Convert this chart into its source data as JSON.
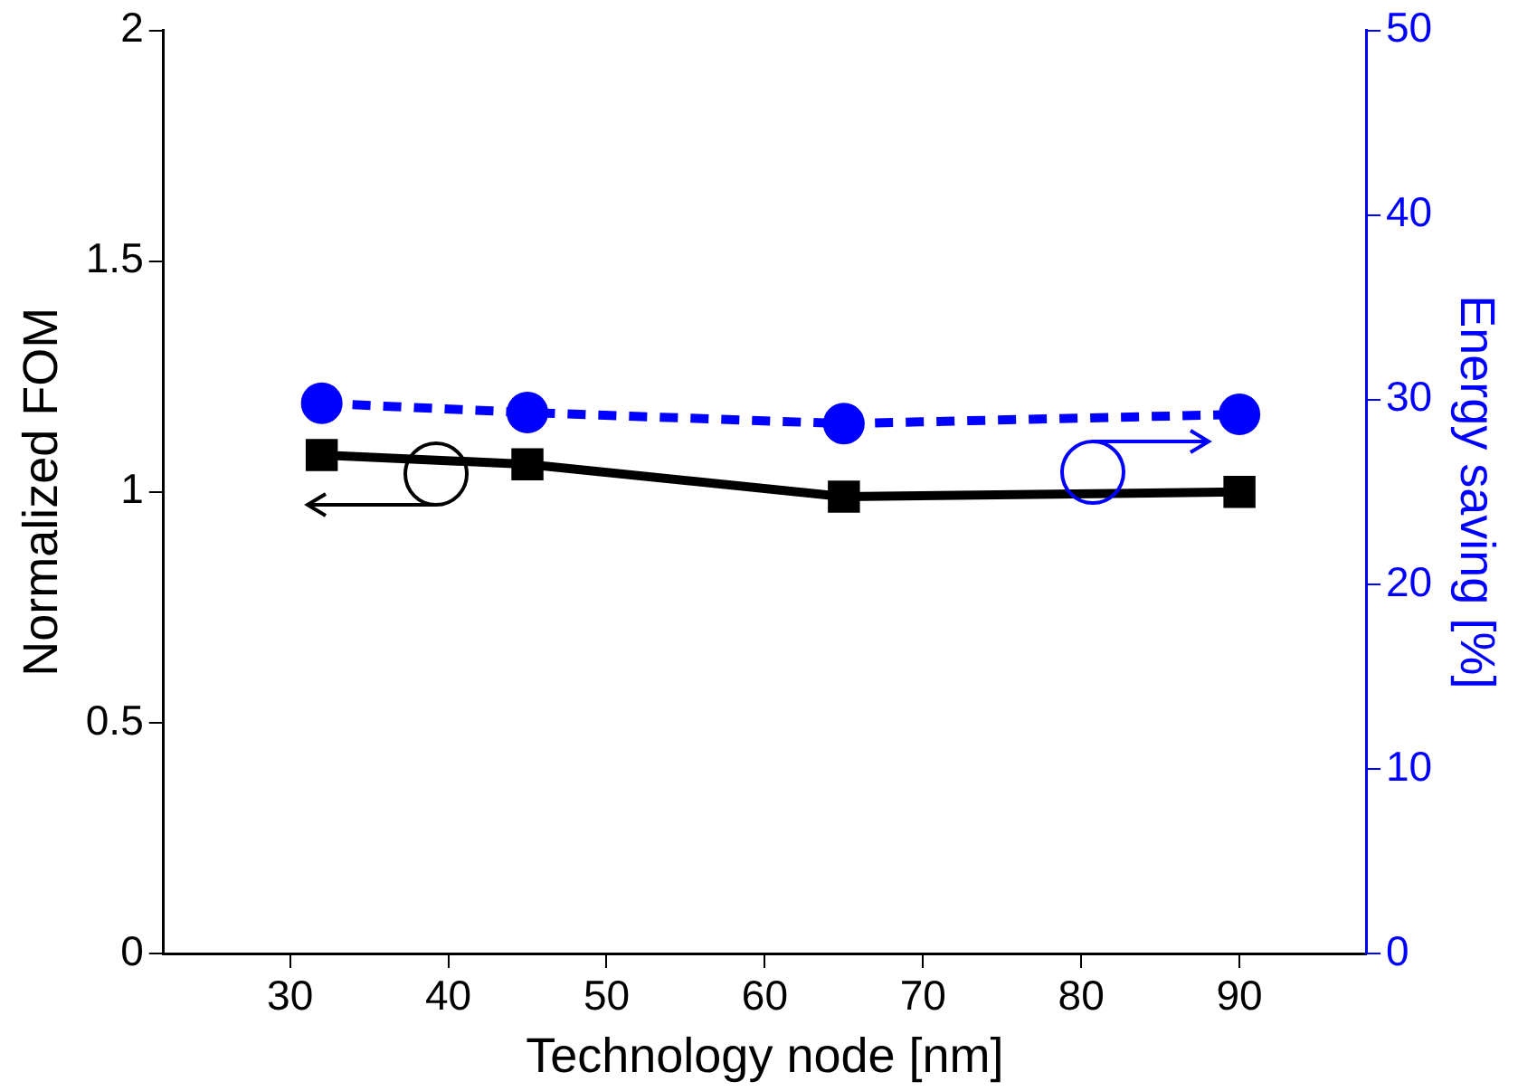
{
  "chart_data": {
    "type": "line",
    "xlabel": "Technology node [nm]",
    "ylabel": "Normalized FOM",
    "y2label": "Energy saving [%]",
    "x": [
      32,
      45,
      65,
      90
    ],
    "xlim": [
      22,
      98
    ],
    "xticks": [
      30,
      40,
      50,
      60,
      70,
      80,
      90
    ],
    "ylim": [
      0,
      2
    ],
    "yticks": [
      0,
      0.5,
      1,
      1.5,
      2
    ],
    "y2lim": [
      0,
      50
    ],
    "y2ticks": [
      0,
      10,
      20,
      30,
      40,
      50
    ],
    "grid": false,
    "series": [
      {
        "color": "#000000",
        "values": [
          1.08,
          1.06,
          0.99,
          1.0
        ],
        "marker": "square",
        "line_style": "solid"
      },
      {
        "color": "#0000ff",
        "values": [
          29.8,
          29.3,
          28.7,
          29.2
        ],
        "marker": "circle",
        "line_style": "dashed",
        "axis": "y2"
      }
    ]
  }
}
